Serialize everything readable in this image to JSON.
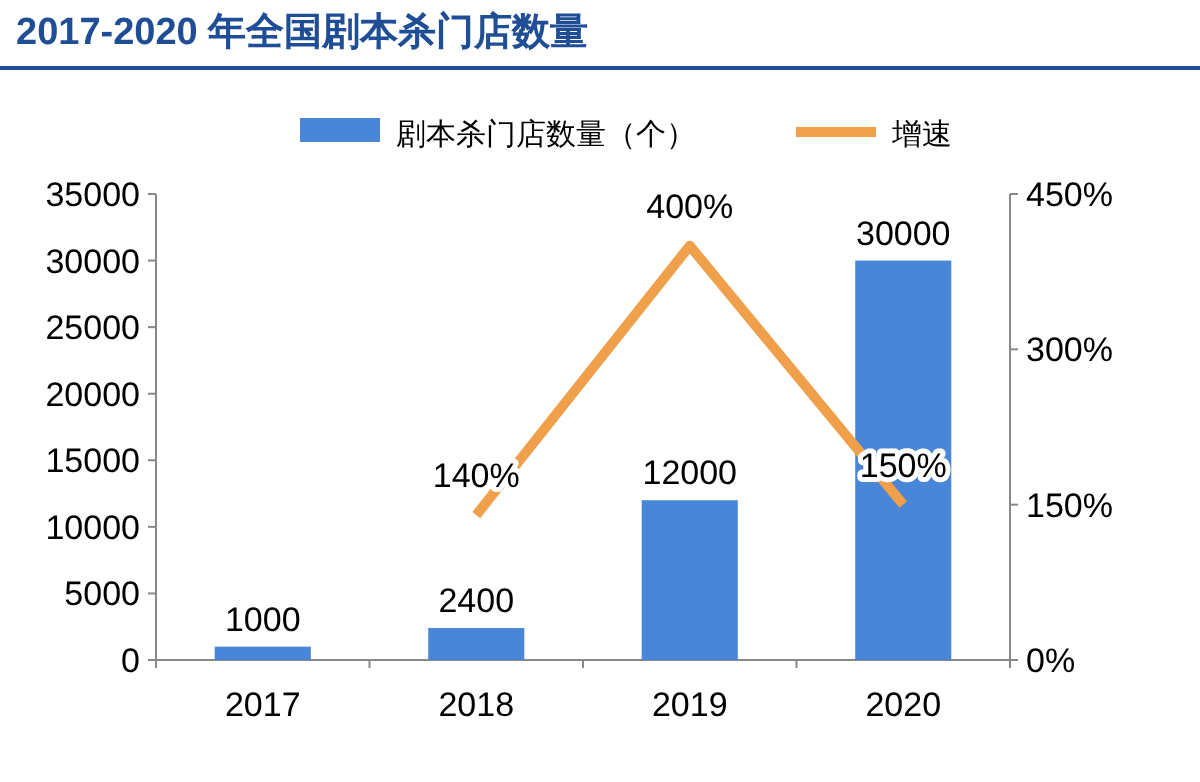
{
  "chart_data": {
    "type": "bar",
    "title": "2017-2020 年全国剧本杀门店数量",
    "categories": [
      "2017",
      "2018",
      "2019",
      "2020"
    ],
    "series": [
      {
        "name": "剧本杀门店数量（个）",
        "color": "#4a86d8",
        "values": [
          1000,
          2400,
          12000,
          30000
        ],
        "value_labels": [
          "1000",
          "2400",
          "12000",
          "30000"
        ]
      },
      {
        "name": "增速",
        "type": "line",
        "axis": "y2",
        "color": "#f0a04b",
        "values": [
          null,
          140,
          400,
          150
        ],
        "value_labels": [
          null,
          "140%",
          "400%",
          "150%"
        ]
      }
    ],
    "ylim": [
      0,
      35000
    ],
    "yticks": [
      0,
      5000,
      10000,
      15000,
      20000,
      25000,
      30000,
      35000
    ],
    "y2lim": [
      0,
      450
    ],
    "y2ticks": [
      {
        "value": 0,
        "label": "0%"
      },
      {
        "value": 150,
        "label": "150%"
      },
      {
        "value": 300,
        "label": "300%"
      },
      {
        "value": 450,
        "label": "450%"
      }
    ],
    "legend": "top",
    "grid": false,
    "marker": "none",
    "line_style": "solid"
  }
}
